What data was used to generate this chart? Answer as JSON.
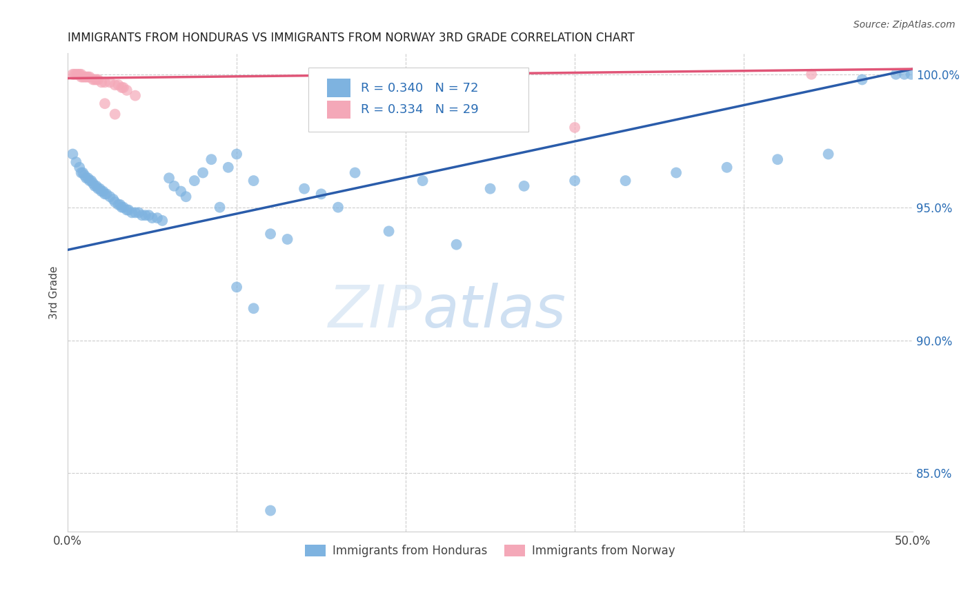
{
  "title": "IMMIGRANTS FROM HONDURAS VS IMMIGRANTS FROM NORWAY 3RD GRADE CORRELATION CHART",
  "source": "Source: ZipAtlas.com",
  "ylabel": "3rd Grade",
  "xlim": [
    0.0,
    0.5
  ],
  "ylim": [
    0.828,
    1.008
  ],
  "xticks": [
    0.0,
    0.1,
    0.2,
    0.3,
    0.4,
    0.5
  ],
  "xticklabels": [
    "0.0%",
    "",
    "",
    "",
    "",
    "50.0%"
  ],
  "yticks": [
    0.85,
    0.9,
    0.95,
    1.0
  ],
  "yticklabels": [
    "85.0%",
    "90.0%",
    "95.0%",
    "100.0%"
  ],
  "grid_color": "#cccccc",
  "background_color": "#ffffff",
  "blue_color": "#7eb3e0",
  "pink_color": "#f4a8b8",
  "line_blue": "#2a5caa",
  "line_pink": "#e05577",
  "R_blue": 0.34,
  "N_blue": 72,
  "R_pink": 0.334,
  "N_pink": 29,
  "legend_label_blue": "Immigrants from Honduras",
  "legend_label_pink": "Immigrants from Norway",
  "watermark_zip": "ZIP",
  "watermark_atlas": "atlas",
  "blue_trendline_x": [
    0.0,
    0.5
  ],
  "blue_trendline_y": [
    0.934,
    1.002
  ],
  "pink_trendline_x": [
    0.0,
    0.5
  ],
  "pink_trendline_y": [
    0.9985,
    1.002
  ],
  "blue_points_x": [
    0.003,
    0.005,
    0.007,
    0.008,
    0.009,
    0.01,
    0.011,
    0.012,
    0.013,
    0.014,
    0.015,
    0.016,
    0.017,
    0.018,
    0.019,
    0.02,
    0.021,
    0.022,
    0.023,
    0.025,
    0.027,
    0.028,
    0.03,
    0.031,
    0.032,
    0.033,
    0.035,
    0.036,
    0.038,
    0.04,
    0.042,
    0.044,
    0.046,
    0.048,
    0.05,
    0.053,
    0.056,
    0.06,
    0.063,
    0.067,
    0.07,
    0.075,
    0.08,
    0.085,
    0.09,
    0.095,
    0.1,
    0.11,
    0.12,
    0.13,
    0.14,
    0.15,
    0.16,
    0.17,
    0.19,
    0.21,
    0.23,
    0.25,
    0.27,
    0.3,
    0.33,
    0.36,
    0.39,
    0.42,
    0.45,
    0.47,
    0.49,
    0.495,
    0.499,
    0.1,
    0.11,
    0.12
  ],
  "blue_points_y": [
    0.97,
    0.967,
    0.965,
    0.963,
    0.963,
    0.962,
    0.961,
    0.961,
    0.96,
    0.96,
    0.959,
    0.958,
    0.958,
    0.957,
    0.957,
    0.956,
    0.956,
    0.955,
    0.955,
    0.954,
    0.953,
    0.952,
    0.951,
    0.951,
    0.95,
    0.95,
    0.949,
    0.949,
    0.948,
    0.948,
    0.948,
    0.947,
    0.947,
    0.947,
    0.946,
    0.946,
    0.945,
    0.961,
    0.958,
    0.956,
    0.954,
    0.96,
    0.963,
    0.968,
    0.95,
    0.965,
    0.97,
    0.96,
    0.94,
    0.938,
    0.957,
    0.955,
    0.95,
    0.963,
    0.941,
    0.96,
    0.936,
    0.957,
    0.958,
    0.96,
    0.96,
    0.963,
    0.965,
    0.968,
    0.97,
    0.998,
    1.0,
    1.0,
    1.0,
    0.92,
    0.912,
    0.836
  ],
  "pink_points_x": [
    0.003,
    0.004,
    0.005,
    0.006,
    0.007,
    0.008,
    0.008,
    0.009,
    0.01,
    0.011,
    0.012,
    0.013,
    0.015,
    0.016,
    0.017,
    0.018,
    0.02,
    0.022,
    0.025,
    0.028,
    0.03,
    0.032,
    0.033,
    0.035,
    0.04,
    0.022,
    0.028,
    0.3,
    0.44
  ],
  "pink_points_y": [
    1.0,
    1.0,
    1.0,
    1.0,
    1.0,
    1.0,
    0.999,
    0.999,
    0.999,
    0.999,
    0.999,
    0.999,
    0.998,
    0.998,
    0.998,
    0.998,
    0.997,
    0.997,
    0.997,
    0.996,
    0.996,
    0.995,
    0.995,
    0.994,
    0.992,
    0.989,
    0.985,
    0.98,
    1.0
  ]
}
